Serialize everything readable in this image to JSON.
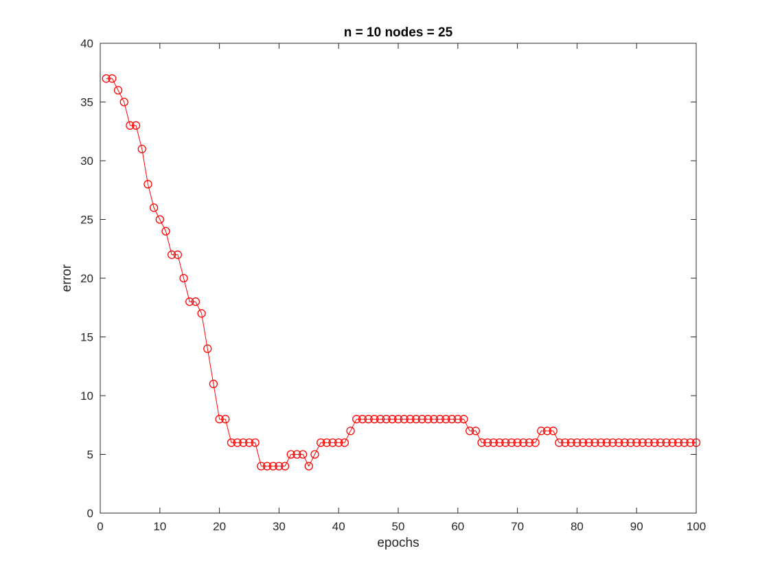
{
  "chart_data": {
    "type": "line",
    "title": "n = 10  nodes = 25",
    "xlabel": "epochs",
    "ylabel": "error",
    "xlim": [
      0,
      100
    ],
    "ylim": [
      0,
      40
    ],
    "xticks": [
      "0",
      "10",
      "20",
      "30",
      "40",
      "50",
      "60",
      "70",
      "80",
      "90",
      "100"
    ],
    "yticks": [
      "0",
      "5",
      "10",
      "15",
      "20",
      "25",
      "30",
      "35",
      "40"
    ],
    "grid": false,
    "legend": "none",
    "marker": "circle",
    "series": [
      {
        "color": "#ff0000",
        "x": [
          1,
          2,
          3,
          4,
          5,
          6,
          7,
          8,
          9,
          10,
          11,
          12,
          13,
          14,
          15,
          16,
          17,
          18,
          19,
          20,
          21,
          22,
          23,
          24,
          25,
          26,
          27,
          28,
          29,
          30,
          31,
          32,
          33,
          34,
          35,
          36,
          37,
          38,
          39,
          40,
          41,
          42,
          43,
          44,
          45,
          46,
          47,
          48,
          49,
          50,
          51,
          52,
          53,
          54,
          55,
          56,
          57,
          58,
          59,
          60,
          61,
          62,
          63,
          64,
          65,
          66,
          67,
          68,
          69,
          70,
          71,
          72,
          73,
          74,
          75,
          76,
          77,
          78,
          79,
          80,
          81,
          82,
          83,
          84,
          85,
          86,
          87,
          88,
          89,
          90,
          91,
          92,
          93,
          94,
          95,
          96,
          97,
          98,
          99,
          100
        ],
        "y": [
          37,
          37,
          36,
          35,
          33,
          33,
          31,
          28,
          26,
          25,
          24,
          22,
          22,
          20,
          18,
          18,
          17,
          14,
          11,
          8,
          8,
          6,
          6,
          6,
          6,
          6,
          4,
          4,
          4,
          4,
          4,
          5,
          5,
          5,
          4,
          5,
          6,
          6,
          6,
          6,
          6,
          7,
          8,
          8,
          8,
          8,
          8,
          8,
          8,
          8,
          8,
          8,
          8,
          8,
          8,
          8,
          8,
          8,
          8,
          8,
          8,
          7,
          7,
          6,
          6,
          6,
          6,
          6,
          6,
          6,
          6,
          6,
          6,
          7,
          7,
          7,
          6,
          6,
          6,
          6,
          6,
          6,
          6,
          6,
          6,
          6,
          6,
          6,
          6,
          6,
          6,
          6,
          6,
          6,
          6,
          6,
          6,
          6,
          6,
          6
        ]
      }
    ]
  }
}
